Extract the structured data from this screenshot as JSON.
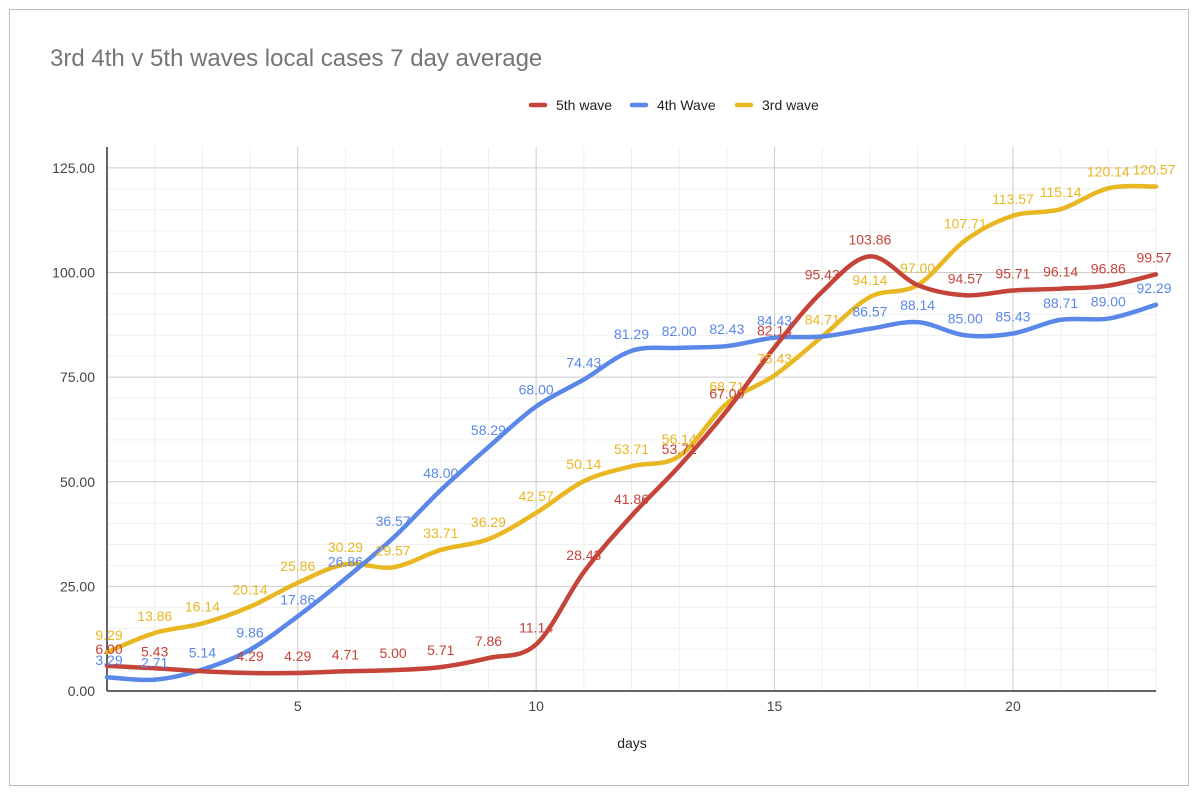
{
  "chart_data": {
    "type": "line",
    "title": "3rd 4th v 5th waves local cases 7 day average",
    "xlabel": "days",
    "ylabel": "",
    "x": [
      1,
      2,
      3,
      4,
      5,
      6,
      7,
      8,
      9,
      10,
      11,
      12,
      13,
      14,
      15,
      16,
      17,
      18,
      19,
      20,
      21,
      22,
      23
    ],
    "xlim": [
      1,
      23
    ],
    "ylim": [
      0,
      130
    ],
    "xticks": [
      "5",
      "10",
      "15",
      "20"
    ],
    "yticks": [
      "0.00",
      "25.00",
      "50.00",
      "75.00",
      "100.00",
      "125.00"
    ],
    "grid": true,
    "legend_position": "top",
    "series": [
      {
        "name": "5th wave",
        "color": "#c5443a",
        "values": [
          6.0,
          5.43,
          4.71,
          4.29,
          4.29,
          4.71,
          5.0,
          5.71,
          7.86,
          11.14,
          28.43,
          41.86,
          53.71,
          67.0,
          82.14,
          95.43,
          103.86,
          97.0,
          94.57,
          95.71,
          96.14,
          96.86,
          99.57
        ],
        "labels": [
          "6.00",
          "5.43",
          "",
          "4.29",
          "4.29",
          "4.71",
          "5.00",
          "5.71",
          "7.86",
          "11.14",
          "28.43",
          "41.86",
          "53.71",
          "67.00",
          "82.14",
          "95.43",
          "103.86",
          "",
          "94.57",
          "95.71",
          "96.14",
          "96.86",
          "99.57"
        ]
      },
      {
        "name": "4th Wave",
        "color": "#5b87e8",
        "values": [
          3.29,
          2.71,
          5.14,
          9.86,
          17.86,
          26.86,
          36.57,
          48.0,
          58.29,
          68.0,
          74.43,
          81.29,
          82.0,
          82.43,
          84.43,
          84.71,
          86.57,
          88.14,
          85.0,
          85.43,
          88.71,
          89.0,
          92.29
        ],
        "labels": [
          "3.29",
          "2.71",
          "5.14",
          "9.86",
          "17.86",
          "26.86",
          "36.57",
          "48.00",
          "58.29",
          "68.00",
          "74.43",
          "81.29",
          "82.00",
          "82.43",
          "84.43",
          "",
          "86.57",
          "88.14",
          "85.00",
          "85.43",
          "88.71",
          "89.00",
          "92.29"
        ]
      },
      {
        "name": "3rd wave",
        "color": "#e8b722",
        "values": [
          9.29,
          13.86,
          16.14,
          20.14,
          25.86,
          30.29,
          29.57,
          33.71,
          36.29,
          42.57,
          50.14,
          53.71,
          56.14,
          68.71,
          75.43,
          84.71,
          94.14,
          97.0,
          107.71,
          113.57,
          115.14,
          120.14,
          120.57
        ],
        "labels": [
          "9.29",
          "13.86",
          "16.14",
          "20.14",
          "25.86",
          "30.29",
          "29.57",
          "33.71",
          "36.29",
          "42.57",
          "50.14",
          "53.71",
          "56.14",
          "68.71",
          "75.43",
          "84.71",
          "94.14",
          "97.00",
          "107.71",
          "113.57",
          "115.14",
          "120.14",
          "120.57"
        ]
      }
    ]
  }
}
